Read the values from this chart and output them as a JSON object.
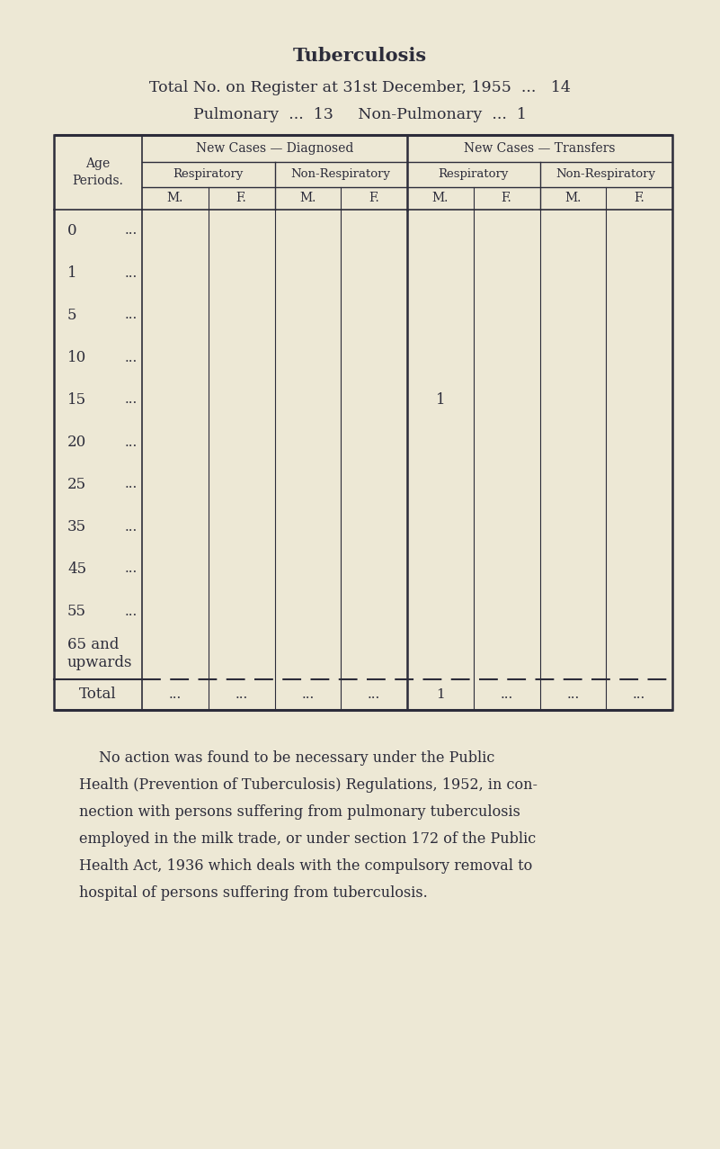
{
  "bg_color": "#ede8d5",
  "title": "Tuberculosis",
  "line1a": "Total No. on Register at ",
  "line1b": "31st",
  "line1c": " December, 1955  ...   14",
  "line2": "Pulmonary  ...  13     Non-Pulmonary  ...  1",
  "header_row1_left": "New Cases — Diagnosed",
  "header_row1_right": "New Cases — Transfers",
  "header_row2_left1": "Respiratory",
  "header_row2_left2": "Non-Respiratory",
  "header_row2_right1": "Respiratory",
  "header_row2_right2": "Non-Respiratory",
  "col_headers": [
    "M.",
    "F.",
    "M.",
    "F.",
    "M.",
    "F.",
    "M.",
    "F."
  ],
  "age_periods": [
    "0",
    "1",
    "5",
    "10",
    "15",
    "20",
    "25",
    "35",
    "45",
    "55",
    "65 and\nupwards"
  ],
  "age_dots": [
    "...",
    "...",
    "...",
    "...",
    "...",
    "...",
    "...",
    "...",
    "...",
    "...",
    ""
  ],
  "table_data": [
    [
      "",
      "",
      "",
      "",
      "",
      "",
      "",
      ""
    ],
    [
      "",
      "",
      "",
      "",
      "",
      "",
      "",
      ""
    ],
    [
      "",
      "",
      "",
      "",
      "",
      "",
      "",
      ""
    ],
    [
      "",
      "",
      "",
      "",
      "",
      "",
      "",
      ""
    ],
    [
      "",
      "",
      "",
      "",
      "1",
      "",
      "",
      ""
    ],
    [
      "",
      "",
      "",
      "",
      "",
      "",
      "",
      ""
    ],
    [
      "",
      "",
      "",
      "",
      "",
      "",
      "",
      ""
    ],
    [
      "",
      "",
      "",
      "",
      "",
      "",
      "",
      ""
    ],
    [
      "",
      "",
      "",
      "",
      "",
      "",
      "",
      ""
    ],
    [
      "",
      "",
      "",
      "",
      "",
      "",
      "",
      ""
    ],
    [
      "",
      "",
      "",
      "",
      "",
      "",
      "",
      ""
    ]
  ],
  "total_row": [
    "...",
    "...",
    "...",
    "...",
    "1",
    "...",
    "...",
    "..."
  ],
  "footer_text": "No action was found to be necessary under the Public\nHealth (Prevention of Tuberculosis) Regulations, 1952, in con-\nnection with persons suffering from pulmonary tuberculosis\nemployed in the milk trade, or under section 172 of the Public\nHealth Act, 1936 which deals with the compulsory removal to\nhospital of persons suffering from tuberculosis."
}
